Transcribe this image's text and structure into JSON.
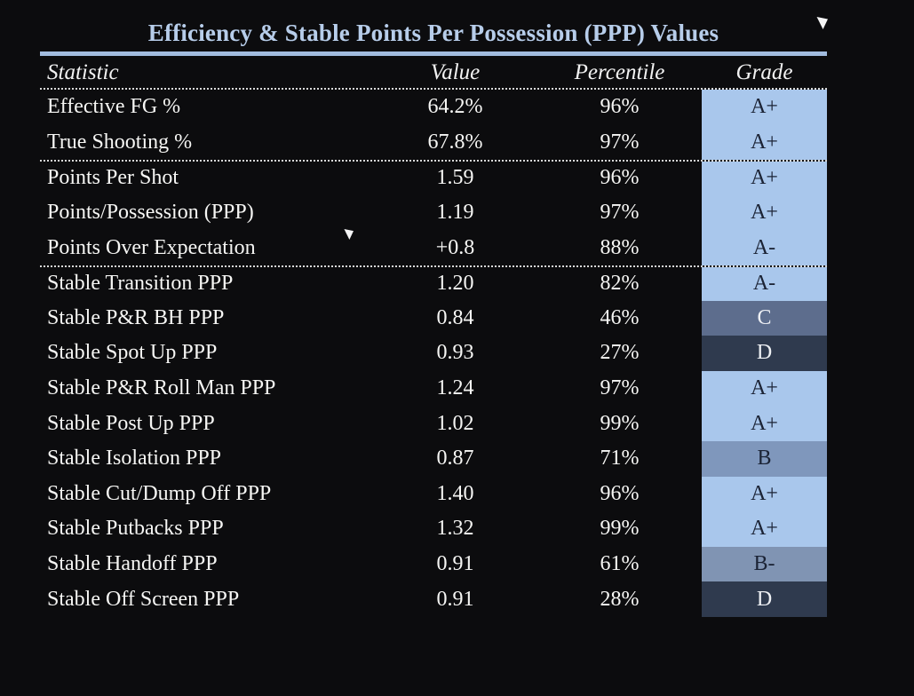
{
  "chart_data": {
    "type": "table",
    "title": "Efficiency & Stable Points Per Possession (PPP) Values",
    "columns": [
      "Statistic",
      "Value",
      "Percentile",
      "Grade"
    ],
    "rows": [
      {
        "statistic": "Effective FG %",
        "value": "64.2%",
        "percentile": "96%",
        "grade": "A+"
      },
      {
        "statistic": "True Shooting %",
        "value": "67.8%",
        "percentile": "97%",
        "grade": "A+"
      },
      {
        "statistic": "Points Per Shot",
        "value": "1.59",
        "percentile": "96%",
        "grade": "A+"
      },
      {
        "statistic": "Points/Possession (PPP)",
        "value": "1.19",
        "percentile": "97%",
        "grade": "A+"
      },
      {
        "statistic": "Points Over Expectation",
        "value": "+0.8",
        "percentile": "88%",
        "grade": "A-"
      },
      {
        "statistic": "Stable Transition PPP",
        "value": "1.20",
        "percentile": "82%",
        "grade": "A-"
      },
      {
        "statistic": "Stable P&R BH PPP",
        "value": "0.84",
        "percentile": "46%",
        "grade": "C"
      },
      {
        "statistic": "Stable Spot Up PPP",
        "value": "0.93",
        "percentile": "27%",
        "grade": "D"
      },
      {
        "statistic": "Stable P&R Roll Man PPP",
        "value": "1.24",
        "percentile": "97%",
        "grade": "A+"
      },
      {
        "statistic": "Stable Post Up PPP",
        "value": "1.02",
        "percentile": "99%",
        "grade": "A+"
      },
      {
        "statistic": "Stable Isolation PPP",
        "value": "0.87",
        "percentile": "71%",
        "grade": "B"
      },
      {
        "statistic": "Stable Cut/Dump Off PPP",
        "value": "1.40",
        "percentile": "96%",
        "grade": "A+"
      },
      {
        "statistic": "Stable Putbacks PPP",
        "value": "1.32",
        "percentile": "99%",
        "grade": "A+"
      },
      {
        "statistic": "Stable Handoff PPP",
        "value": "0.91",
        "percentile": "61%",
        "grade": "B-"
      },
      {
        "statistic": "Stable Off Screen PPP",
        "value": "0.91",
        "percentile": "28%",
        "grade": "D"
      }
    ],
    "separator_above_row_indices": [
      2,
      5
    ],
    "grade_colors": {
      "A+": {
        "bg": "#a9c7ec",
        "text": "#1b2335"
      },
      "A-": {
        "bg": "#a9c7ec",
        "text": "#1b2335"
      },
      "B": {
        "bg": "#7f97bc",
        "text": "#1b2335"
      },
      "B-": {
        "bg": "#8094b3",
        "text": "#1b2335"
      },
      "C": {
        "bg": "#5d6d8d",
        "text": "#eef0f4"
      },
      "D": {
        "bg": "#2f3a4e",
        "text": "#eef0f4"
      }
    },
    "layout_hints": {
      "legend_position": "none",
      "grid": "off"
    },
    "colors": {
      "background": "#0c0c0e",
      "title_text": "#b7cdea",
      "divider_bar": "#a2bcdf",
      "header_text": "#f2f2f2",
      "row_text": "#f6f6f4",
      "separator_dots": "#d9d9d9",
      "cursor": "#f5f5f5"
    }
  }
}
